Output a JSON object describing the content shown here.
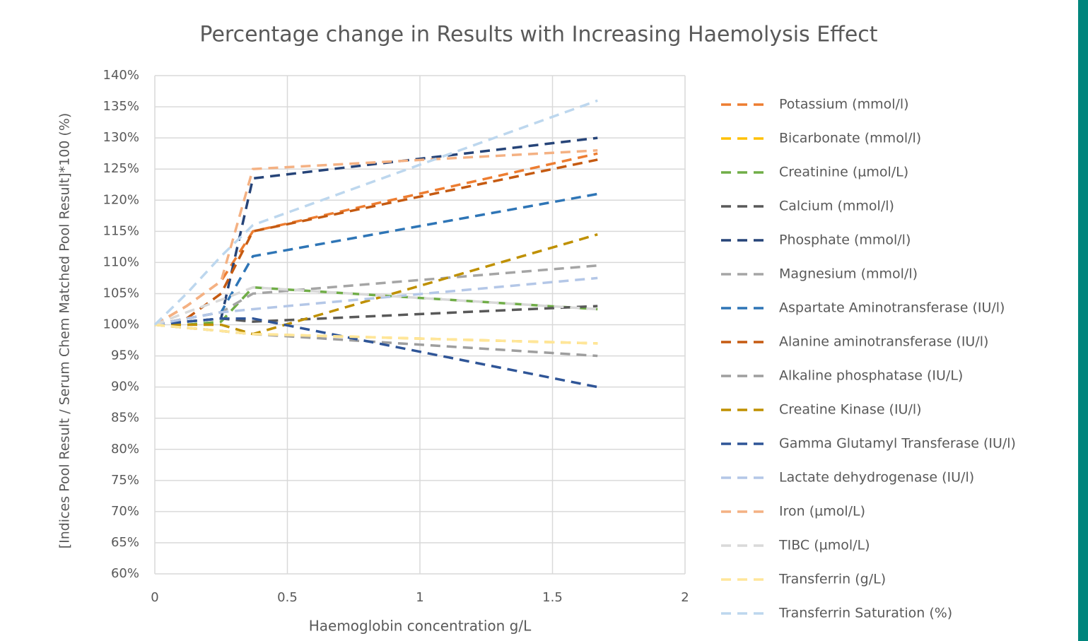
{
  "chart_data": {
    "type": "line",
    "title": "Percentage change in Results with Increasing Haemolysis Effect",
    "xlabel": "Haemoglobin concentration g/L",
    "ylabel": "[Indices Pool Result / Serum Chem Matched Pool Result]*100 (%)",
    "x": [
      0,
      0.12,
      0.25,
      0.37,
      1.67
    ],
    "xlim": [
      0,
      2
    ],
    "xticks": [
      0,
      0.5,
      1,
      1.5,
      2
    ],
    "ylim": [
      60,
      140
    ],
    "yticks": [
      {
        "value": 60,
        "label": "60%"
      },
      {
        "value": 65,
        "label": "65%"
      },
      {
        "value": 70,
        "label": "70%"
      },
      {
        "value": 75,
        "label": "75%"
      },
      {
        "value": 80,
        "label": "80%"
      },
      {
        "value": 85,
        "label": "85%"
      },
      {
        "value": 90,
        "label": "90%"
      },
      {
        "value": 95,
        "label": "95%"
      },
      {
        "value": 100,
        "label": "100%"
      },
      {
        "value": 105,
        "label": "105%"
      },
      {
        "value": 110,
        "label": "110%"
      },
      {
        "value": 115,
        "label": "115%"
      },
      {
        "value": 120,
        "label": "120%"
      },
      {
        "value": 125,
        "label": "125%"
      },
      {
        "value": 130,
        "label": "130%"
      },
      {
        "value": 135,
        "label": "135%"
      },
      {
        "value": 140,
        "label": "140%"
      }
    ],
    "grid": true,
    "legend": "right",
    "series": [
      {
        "name": "Potassium (mmol/l)",
        "color": "#ED7D31",
        "values": [
          100,
          103,
          107,
          115,
          127.5
        ]
      },
      {
        "name": "Bicarbonate (mmol/l)",
        "color": "#FFC000",
        "values": [
          100,
          99.5,
          99,
          98.5,
          97
        ]
      },
      {
        "name": "Creatinine (µmol/L)",
        "color": "#70AD47",
        "values": [
          100,
          100,
          100.5,
          106,
          102.5
        ]
      },
      {
        "name": "Calcium (mmol/l)",
        "color": "#595959",
        "values": [
          100,
          100.5,
          101,
          100.5,
          103
        ]
      },
      {
        "name": "Phosphate (mmol/l)",
        "color": "#264478",
        "values": [
          100,
          100.5,
          101,
          123.5,
          130
        ]
      },
      {
        "name": "Magnesium (mmol/l)",
        "color": "#A5A5A5",
        "values": [
          100,
          101,
          102,
          105,
          109.5
        ]
      },
      {
        "name": "Aspartate Aminotransferase (IU/l)",
        "color": "#2E75B6",
        "values": [
          100,
          101,
          102,
          111,
          121
        ]
      },
      {
        "name": "Alanine aminotransferase (IU/l)",
        "color": "#C55A11",
        "values": [
          100,
          101,
          105,
          115,
          126.5
        ]
      },
      {
        "name": "Alkaline phosphatase (IU/L)",
        "color": "#9E9E9E",
        "values": [
          100,
          99.5,
          99,
          98.5,
          95
        ]
      },
      {
        "name": "Creatine Kinase (IU/l)",
        "color": "#BF9000",
        "values": [
          100,
          100,
          100,
          98.5,
          114.5
        ]
      },
      {
        "name": "Gamma Glutamyl Transferase (IU/l)",
        "color": "#2F5597",
        "values": [
          100,
          100.5,
          101,
          101,
          90
        ]
      },
      {
        "name": "Lactate dehydrogenase (IU/l)",
        "color": "#B4C7E7",
        "values": [
          100,
          101,
          102,
          102.5,
          107.5
        ]
      },
      {
        "name": "Iron (µmol/L)",
        "color": "#F4B183",
        "values": [
          100,
          103,
          107,
          125,
          128
        ]
      },
      {
        "name": "TIBC (µmol/L)",
        "color": "#D9D9D9",
        "values": [
          100,
          102,
          104,
          106,
          102.5
        ]
      },
      {
        "name": "Transferrin (g/L)",
        "color": "#FFE699",
        "values": [
          100,
          99.5,
          99,
          98.5,
          97
        ]
      },
      {
        "name": "Transferrin Saturation (%)",
        "color": "#BDD7EE",
        "values": [
          100,
          105,
          111,
          116,
          136
        ]
      }
    ]
  }
}
